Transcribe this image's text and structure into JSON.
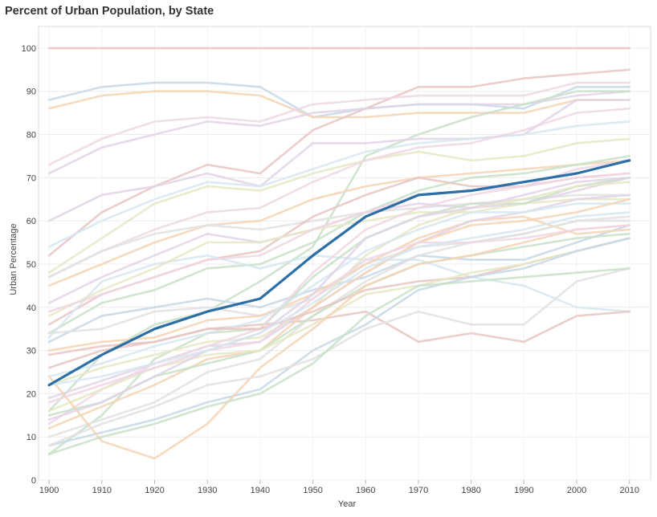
{
  "chart_data": {
    "type": "line",
    "title": "Percent of Urban Population, by State",
    "xlabel": "Year",
    "ylabel": "Urban Percentage",
    "x": [
      1900,
      1910,
      1920,
      1930,
      1940,
      1950,
      1960,
      1970,
      1980,
      1990,
      2000,
      2010
    ],
    "xlim": [
      1898,
      2014
    ],
    "ylim": [
      0,
      105
    ],
    "yticks": [
      0,
      10,
      20,
      30,
      40,
      50,
      60,
      70,
      80,
      90,
      100
    ],
    "grid": true,
    "legend": "none",
    "highlight_color": "#2c6fa6",
    "highlighted_series": [
      22,
      29,
      35,
      39,
      42,
      52,
      61,
      66,
      67,
      69,
      71,
      74
    ],
    "background_series": [
      {
        "color": "#e8c4c2",
        "values": [
          100,
          100,
          100,
          100,
          100,
          100,
          100,
          100,
          100,
          100,
          100,
          100
        ]
      },
      {
        "color": "#c4d8e6",
        "values": [
          88,
          91,
          92,
          92,
          91,
          84,
          86,
          87,
          87,
          86,
          91,
          91
        ]
      },
      {
        "color": "#f4d3b4",
        "values": [
          86,
          89,
          90,
          90,
          89,
          84,
          84,
          85,
          85,
          85,
          88,
          88
        ]
      },
      {
        "color": "#e8c4c2",
        "values": [
          52,
          62,
          68,
          73,
          71,
          81,
          86,
          91,
          91,
          93,
          94,
          95
        ]
      },
      {
        "color": "#eed6e4",
        "values": [
          73,
          79,
          83,
          84,
          83,
          87,
          88,
          89,
          89,
          89,
          92,
          92
        ]
      },
      {
        "color": "#e0d2e6",
        "values": [
          71,
          77,
          80,
          83,
          82,
          85,
          86,
          87,
          87,
          87,
          89,
          90
        ]
      },
      {
        "color": "#c8e0c8",
        "values": [
          16,
          29,
          36,
          39,
          46,
          54,
          75,
          80,
          84,
          87,
          90,
          90
        ]
      },
      {
        "color": "#e0d2e6",
        "values": [
          60,
          66,
          68,
          71,
          68,
          78,
          78,
          79,
          79,
          80,
          88,
          88
        ]
      },
      {
        "color": "#e6e6c4",
        "values": [
          48,
          56,
          64,
          68,
          67,
          71,
          74,
          76,
          74,
          75,
          78,
          79
        ]
      },
      {
        "color": "#d6e6f0",
        "values": [
          54,
          60,
          65,
          69,
          68,
          72,
          76,
          78,
          79,
          80,
          82,
          83
        ]
      },
      {
        "color": "#eed6e4",
        "values": [
          47,
          53,
          58,
          62,
          63,
          69,
          74,
          77,
          78,
          81,
          85,
          86
        ]
      },
      {
        "color": "#f4d3b4",
        "values": [
          45,
          50,
          55,
          59,
          60,
          65,
          68,
          70,
          71,
          72,
          73,
          74
        ]
      },
      {
        "color": "#c8e0c8",
        "values": [
          34,
          41,
          44,
          49,
          50,
          55,
          62,
          67,
          70,
          71,
          73,
          75
        ]
      },
      {
        "color": "#e0e0e0",
        "values": [
          47,
          53,
          57,
          59,
          58,
          60,
          62,
          63,
          64,
          65,
          66,
          66
        ]
      },
      {
        "color": "#e8c4c2",
        "values": [
          36,
          43,
          47,
          51,
          53,
          61,
          66,
          70,
          68,
          68,
          70,
          71
        ]
      },
      {
        "color": "#e0d2e6",
        "values": [
          41,
          47,
          52,
          57,
          55,
          58,
          62,
          64,
          63,
          64,
          67,
          70
        ]
      },
      {
        "color": "#d6e6f0",
        "values": [
          33,
          46,
          50,
          52,
          49,
          52,
          51,
          51,
          47,
          45,
          40,
          39
        ]
      },
      {
        "color": "#e6e6c4",
        "values": [
          38,
          44,
          49,
          55,
          55,
          58,
          60,
          62,
          62,
          64,
          65,
          65
        ]
      },
      {
        "color": "#eed6e4",
        "values": [
          39,
          43,
          47,
          51,
          52,
          58,
          62,
          66,
          67,
          68,
          70,
          71
        ]
      },
      {
        "color": "#c4d8e6",
        "values": [
          32,
          38,
          40,
          42,
          40,
          44,
          47,
          52,
          51,
          51,
          55,
          59
        ]
      },
      {
        "color": "#e8c4c2",
        "values": [
          29,
          31,
          32,
          35,
          36,
          37,
          39,
          32,
          34,
          32,
          38,
          39
        ]
      },
      {
        "color": "#e0e0e0",
        "values": [
          34,
          35,
          39,
          40,
          38,
          42,
          50,
          54,
          55,
          57,
          60,
          60
        ]
      },
      {
        "color": "#f4d3b4",
        "values": [
          30,
          32,
          33,
          37,
          38,
          43,
          50,
          56,
          60,
          61,
          57,
          58
        ]
      },
      {
        "color": "#c8e0c8",
        "values": [
          6,
          15,
          28,
          34,
          35,
          47,
          56,
          61,
          64,
          64,
          68,
          70
        ]
      },
      {
        "color": "#e6e6c4",
        "values": [
          22,
          26,
          29,
          32,
          33,
          40,
          52,
          59,
          63,
          65,
          68,
          69
        ]
      },
      {
        "color": "#e0d2e6",
        "values": [
          19,
          23,
          27,
          31,
          32,
          40,
          48,
          55,
          60,
          62,
          65,
          66
        ]
      },
      {
        "color": "#eed6e4",
        "values": [
          13,
          21,
          27,
          31,
          35,
          48,
          58,
          63,
          66,
          68,
          72,
          74
        ]
      },
      {
        "color": "#d6e6f0",
        "values": [
          24,
          27,
          31,
          34,
          37,
          45,
          53,
          58,
          62,
          62,
          64,
          64
        ]
      },
      {
        "color": "#f4d3b4",
        "values": [
          12,
          17,
          22,
          28,
          30,
          40,
          48,
          55,
          59,
          60,
          62,
          65
        ]
      },
      {
        "color": "#e0e0e0",
        "values": [
          10,
          14,
          18,
          25,
          28,
          38,
          46,
          52,
          55,
          57,
          60,
          61
        ]
      },
      {
        "color": "#c8e0c8",
        "values": [
          15,
          18,
          24,
          27,
          30,
          38,
          45,
          50,
          52,
          54,
          56,
          57
        ]
      },
      {
        "color": "#e8c4c2",
        "values": [
          26,
          30,
          32,
          35,
          35,
          39,
          44,
          46,
          47,
          50,
          53,
          56
        ]
      },
      {
        "color": "#e6e6c4",
        "values": [
          16,
          21,
          26,
          29,
          30,
          36,
          43,
          45,
          48,
          50,
          53,
          56
        ]
      },
      {
        "color": "#c4d8e6",
        "values": [
          8,
          11,
          14,
          18,
          21,
          30,
          36,
          44,
          47,
          49,
          53,
          56
        ]
      },
      {
        "color": "#f4d3b4",
        "values": [
          24,
          9,
          5,
          13,
          26,
          35,
          45,
          50,
          52,
          55,
          58,
          59
        ]
      },
      {
        "color": "#e0e0e0",
        "values": [
          8,
          13,
          17,
          22,
          24,
          28,
          35,
          39,
          36,
          36,
          46,
          49
        ]
      },
      {
        "color": "#c8e0c8",
        "values": [
          6,
          10,
          13,
          17,
          20,
          27,
          38,
          45,
          46,
          47,
          48,
          49
        ]
      },
      {
        "color": "#eed6e4",
        "values": [
          18,
          22,
          26,
          30,
          32,
          42,
          51,
          55,
          55,
          56,
          58,
          59
        ]
      },
      {
        "color": "#e0d2e6",
        "values": [
          14,
          18,
          24,
          30,
          34,
          43,
          56,
          61,
          63,
          66,
          69,
          70
        ]
      },
      {
        "color": "#d6e6f0",
        "values": [
          22,
          24,
          27,
          30,
          34,
          41,
          49,
          54,
          56,
          58,
          61,
          62
        ]
      }
    ]
  }
}
